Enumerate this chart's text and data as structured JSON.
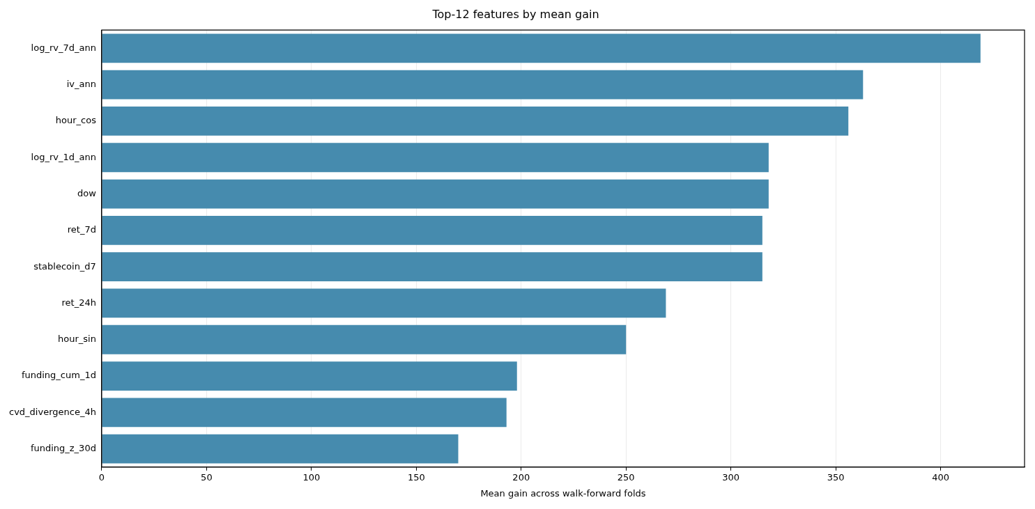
{
  "chart_data": {
    "type": "bar",
    "orientation": "horizontal",
    "title": "Top-12 features by mean gain",
    "xlabel": "Mean gain across walk-forward folds",
    "categories": [
      "log_rv_7d_ann",
      "iv_ann",
      "hour_cos",
      "log_rv_1d_ann",
      "dow",
      "ret_7d",
      "stablecoin_d7",
      "ret_24h",
      "hour_sin",
      "funding_cum_1d",
      "cvd_divergence_4h",
      "funding_z_30d"
    ],
    "values": [
      419,
      363,
      356,
      318,
      318,
      315,
      315,
      269,
      250,
      198,
      193,
      170
    ],
    "color": "#468bae",
    "xlim": [
      0,
      440
    ],
    "xticks": [
      0,
      50,
      100,
      150,
      200,
      250,
      300,
      350,
      400
    ],
    "grid": "x"
  }
}
